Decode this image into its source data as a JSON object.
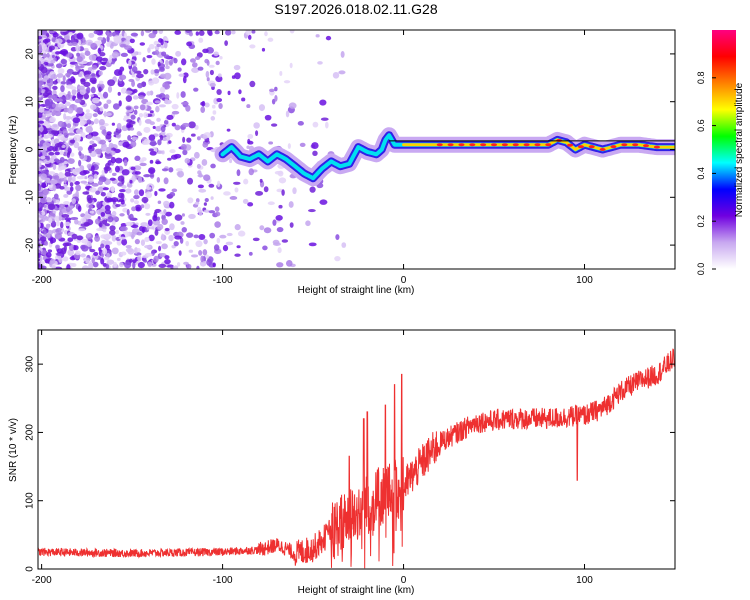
{
  "figure": {
    "title": "S197.2026.018.02.11.G28"
  },
  "chart_data": [
    {
      "type": "heatmap",
      "xlabel": "Height of straight line (km)",
      "ylabel": "Frequency (Hz)",
      "xlim": [
        -202,
        150
      ],
      "ylim": [
        -25,
        25
      ],
      "xticks": [
        -200,
        -100,
        0,
        100
      ],
      "yticks": [
        -20,
        -10,
        0,
        10,
        20
      ],
      "colorbar": {
        "label": "Normalized spectral amplitude",
        "range": [
          0,
          1
        ],
        "ticks": [
          0.0,
          0.2,
          0.4,
          0.6,
          0.8
        ],
        "colors": [
          "#ffffff",
          "#c8a8f0",
          "#7000e0",
          "#0000ff",
          "#00ffff",
          "#00ff00",
          "#ffff00",
          "#ff8000",
          "#ff0000",
          "#ff0080"
        ]
      },
      "ridge": {
        "description_values": "approximate frequency of dominant spectral line vs height",
        "x": [
          -100,
          -95,
          -90,
          -85,
          -80,
          -75,
          -70,
          -65,
          -60,
          -55,
          -50,
          -45,
          -40,
          -35,
          -30,
          -25,
          -20,
          -15,
          -12,
          -10,
          -8,
          -5,
          0,
          10,
          20,
          40,
          60,
          80,
          85,
          90,
          95,
          100,
          110,
          120,
          130,
          140,
          150
        ],
        "y": [
          -1,
          0.5,
          -1.5,
          -2,
          -1,
          -2.5,
          -1,
          -2,
          -3.5,
          -5,
          -6,
          -4,
          -2.5,
          -3.5,
          -3,
          0.5,
          -0.5,
          -1,
          0,
          2,
          3,
          1,
          1,
          1,
          1,
          1,
          1,
          1,
          2,
          1.5,
          0,
          1,
          0,
          1,
          1,
          0.5,
          0.5
        ]
      }
    },
    {
      "type": "line",
      "xlabel": "Height of straight line (km)",
      "ylabel": "SNR (10 * v/v)",
      "xlim": [
        -202,
        150
      ],
      "ylim": [
        0,
        350
      ],
      "xticks": [
        -200,
        -100,
        0,
        100
      ],
      "yticks": [
        0,
        100,
        200,
        300
      ],
      "series": [
        {
          "name": "SNR",
          "color": "#ee3030",
          "trend_x": [
            -202,
            -150,
            -100,
            -80,
            -70,
            -65,
            -60,
            -50,
            -40,
            -30,
            -20,
            -10,
            0,
            10,
            20,
            30,
            40,
            60,
            80,
            100,
            110,
            120,
            130,
            140,
            150
          ],
          "trend_y": [
            25,
            23,
            25,
            28,
            35,
            30,
            22,
            30,
            55,
            75,
            95,
            110,
            120,
            155,
            185,
            200,
            215,
            220,
            220,
            225,
            235,
            260,
            275,
            285,
            310
          ],
          "spikes_x": [
            -30,
            -22,
            -20,
            -10,
            -5,
            -1,
            96
          ],
          "spikes_y": [
            165,
            220,
            230,
            240,
            270,
            285,
            130
          ]
        }
      ]
    }
  ]
}
